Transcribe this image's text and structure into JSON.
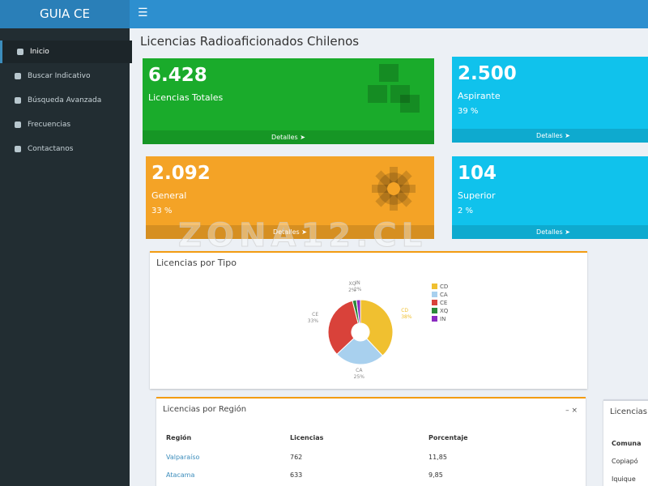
{
  "header": {
    "brand": "GUIA CE"
  },
  "sidebar": {
    "items": [
      "Inicio",
      "Buscar Indicativo",
      "Búsqueda Avanzada",
      "Frecuencias",
      "Contactanos"
    ]
  },
  "page_title": "Licencias Radioaficionados Chilenos",
  "boxes": [
    {
      "value": "6.428",
      "label": "Licencias Totales",
      "footer": "Detalles",
      "color": "#1aab2b"
    },
    {
      "value": "2.500",
      "label": "Aspirante",
      "percent": "39 %",
      "footer": "Detalles",
      "color": "#10c2ec"
    },
    {
      "value": "2.092",
      "label": "General",
      "percent": "33 %",
      "footer": "Detalles",
      "color": "#f4a326"
    },
    {
      "value": "104",
      "label": "Superior",
      "percent": "2 %",
      "footer": "Detalles",
      "color": "#10c2ec"
    }
  ],
  "donut": {
    "title": "Licencias por Tipo",
    "labels": [
      "CD",
      "CA",
      "CE",
      "XQ",
      "IN"
    ],
    "values": [
      38,
      25,
      33,
      2,
      2
    ],
    "value_labels": [
      "38%",
      "25%",
      "33%",
      "2%",
      "2%"
    ],
    "colors": [
      "#f0c030",
      "#a8d0ee",
      "#d9423a",
      "#2a8a3a",
      "#8a2ac0"
    ]
  },
  "region_table": {
    "title": "Licencias por Región",
    "columns": [
      "Región",
      "Licencias",
      "Porcentaje"
    ],
    "rows": [
      [
        "Valparaíso",
        "762",
        "11,85"
      ],
      [
        "Atacama",
        "633",
        "9,85"
      ]
    ]
  },
  "comuna_table": {
    "title": "Licencias",
    "columns": [
      "Comuna"
    ],
    "rows": [
      [
        "Copiapó"
      ],
      [
        "Iquique"
      ]
    ]
  },
  "watermark": "ZONA12.CL"
}
